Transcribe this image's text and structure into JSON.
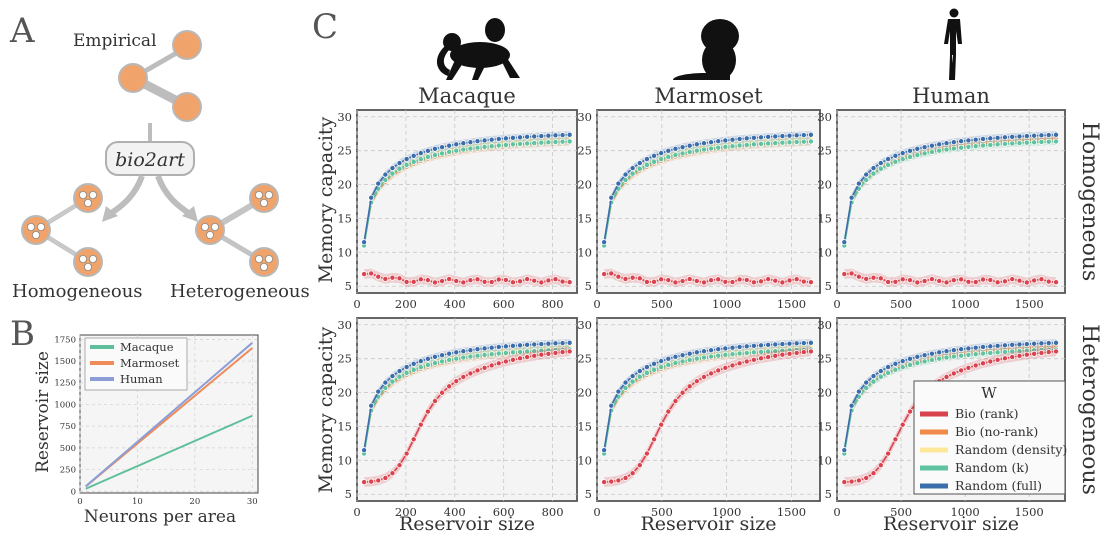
{
  "panels": {
    "A": {
      "letter": "A",
      "empirical_label": "Empirical",
      "tool_label": "bio2art",
      "homogeneous_label": "Homogeneous",
      "heterogeneous_label": "Heterogeneous"
    },
    "B": {
      "letter": "B"
    },
    "C": {
      "letter": "C"
    }
  },
  "colors": {
    "macaque": "#5fbf9a",
    "marmoset": "#ef8a5a",
    "human": "#8c9ed6",
    "bio_rank": "#d9434e",
    "bio_norank": "#f08a4b",
    "random_density": "#fde89a",
    "random_k": "#5fc2a0",
    "random_full": "#3b6dab",
    "node_orange": "#f0a36a"
  },
  "chart_data": [
    {
      "id": "B",
      "type": "line",
      "xlabel": "Neurons per area",
      "ylabel": "Reservoir size",
      "xlim": [
        0,
        31
      ],
      "ylim": [
        -20,
        1800
      ],
      "xticks": [
        0,
        10,
        20,
        30
      ],
      "yticks": [
        0,
        250,
        500,
        750,
        1000,
        1250,
        1500,
        1750
      ],
      "grid": true,
      "legend_position": "top-left",
      "series": [
        {
          "name": "Macaque",
          "x": [
            1,
            30
          ],
          "y": [
            29,
            870
          ]
        },
        {
          "name": "Marmoset",
          "x": [
            1,
            30
          ],
          "y": [
            55,
            1650
          ]
        },
        {
          "name": "Human",
          "x": [
            1,
            30
          ],
          "y": [
            57,
            1710
          ]
        }
      ]
    },
    {
      "id": "C",
      "type": "line",
      "columns": [
        "Macaque",
        "Marmoset",
        "Human"
      ],
      "rows": [
        "Homogeneous",
        "Heterogeneous"
      ],
      "xlabel": "Reservoir size",
      "ylabel": "Memory capacity",
      "ylim": [
        4,
        31
      ],
      "yticks": [
        5,
        10,
        15,
        20,
        25,
        30
      ],
      "grid": true,
      "legend_title": "W",
      "legend_position": "bottom-right",
      "legend_entries": [
        "Bio (rank)",
        "Bio (no-rank)",
        "Random (density)",
        "Random (k)",
        "Random (full)"
      ],
      "xlim_by_column": [
        [
          0,
          900
        ],
        [
          0,
          1720
        ],
        [
          0,
          1780
        ]
      ],
      "xticks_by_column": [
        [
          0,
          200,
          400,
          600,
          800
        ],
        [
          0,
          500,
          1000,
          1500
        ],
        [
          0,
          500,
          1000,
          1500
        ]
      ],
      "x_ranges": [
        [
          29,
          870
        ],
        [
          55,
          1650
        ],
        [
          57,
          1710
        ]
      ],
      "curve_params": {
        "homogeneous": {
          "Random (full)": [
            11.5,
            28,
            1.9
          ],
          "Random (k)": [
            11.0,
            27,
            1.9
          ],
          "Random (density)": [
            11.2,
            27.5,
            1.9
          ],
          "Bio (no-rank)": [
            11.2,
            27,
            1.8
          ],
          "Bio (rank)": [
            6.8,
            5.8,
            0.15
          ]
        },
        "heterogeneous": {
          "Random (full)": [
            11.5,
            28,
            1.9
          ],
          "Random (k)": [
            11.0,
            27,
            1.9
          ],
          "Random (density)": [
            11.2,
            27.5,
            1.9
          ],
          "Bio (no-rank)": [
            11.2,
            27,
            1.8
          ],
          "Bio (rank)": [
            6.8,
            27,
            2.2
          ]
        }
      },
      "human_noRank_end": 27.5
    }
  ]
}
